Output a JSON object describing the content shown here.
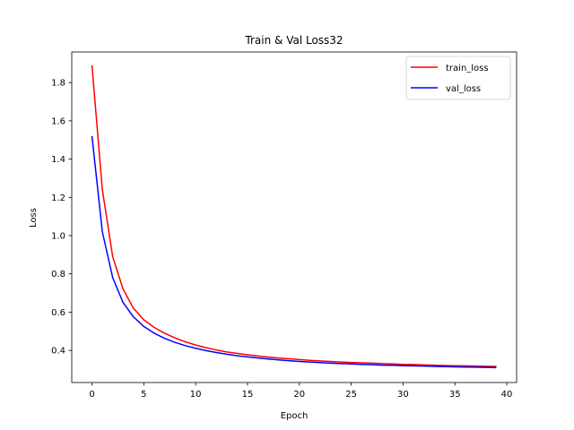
{
  "chart_data": {
    "type": "line",
    "title": "Train & Val Loss32",
    "xlabel": "Epoch",
    "ylabel": "Loss",
    "xlim": [
      -1.95,
      40.95
    ],
    "ylim": [
      0.232,
      1.96
    ],
    "xticks": [
      0,
      5,
      10,
      15,
      20,
      25,
      30,
      35,
      40
    ],
    "yticks": [
      0.4,
      0.6,
      0.8,
      1.0,
      1.2,
      1.4,
      1.6,
      1.8
    ],
    "ytick_labels": [
      "0.4",
      "0.6",
      "0.8",
      "1.0",
      "1.2",
      "1.4",
      "1.6",
      "1.8"
    ],
    "grid": false,
    "legend_position": "top-right",
    "x": [
      0,
      1,
      2,
      3,
      4,
      5,
      6,
      7,
      8,
      9,
      10,
      11,
      12,
      13,
      14,
      15,
      16,
      17,
      18,
      19,
      20,
      21,
      22,
      23,
      24,
      25,
      26,
      27,
      28,
      29,
      30,
      31,
      32,
      33,
      34,
      35,
      36,
      37,
      38,
      39
    ],
    "series": [
      {
        "name": "train_loss",
        "color": "#ff0000",
        "values": [
          1.89,
          1.24,
          0.89,
          0.72,
          0.62,
          0.56,
          0.52,
          0.49,
          0.465,
          0.445,
          0.428,
          0.414,
          0.402,
          0.392,
          0.384,
          0.377,
          0.371,
          0.365,
          0.36,
          0.356,
          0.352,
          0.348,
          0.345,
          0.342,
          0.339,
          0.337,
          0.335,
          0.333,
          0.331,
          0.329,
          0.327,
          0.326,
          0.324,
          0.323,
          0.321,
          0.32,
          0.319,
          0.318,
          0.317,
          0.316
        ]
      },
      {
        "name": "val_loss",
        "color": "#0000ff",
        "values": [
          1.52,
          1.02,
          0.78,
          0.65,
          0.575,
          0.525,
          0.49,
          0.463,
          0.442,
          0.425,
          0.411,
          0.399,
          0.389,
          0.38,
          0.372,
          0.366,
          0.36,
          0.355,
          0.35,
          0.346,
          0.342,
          0.339,
          0.336,
          0.333,
          0.331,
          0.329,
          0.327,
          0.325,
          0.323,
          0.322,
          0.32,
          0.319,
          0.318,
          0.316,
          0.315,
          0.314,
          0.313,
          0.312,
          0.311,
          0.31
        ]
      }
    ]
  }
}
